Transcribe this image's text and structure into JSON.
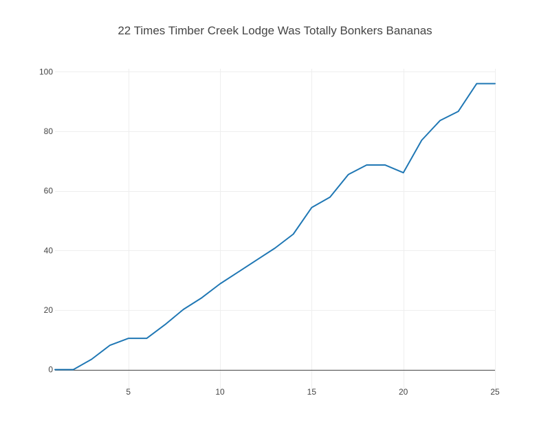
{
  "chart_data": {
    "type": "line",
    "title": "22 Times  Timber Creek Lodge  Was Totally Bonkers Bananas",
    "xlabel": "",
    "ylabel": "",
    "xlim": [
      1,
      25
    ],
    "ylim": [
      -7,
      101
    ],
    "x_ticks": [
      5,
      10,
      15,
      20,
      25
    ],
    "y_ticks": [
      0,
      20,
      40,
      60,
      80,
      100
    ],
    "grid": true,
    "legend": "none",
    "series": [
      {
        "color": "#1f77b4",
        "x": [
          1,
          2,
          3,
          4,
          5,
          6,
          7,
          8,
          9,
          10,
          11,
          12,
          13,
          14,
          15,
          16,
          17,
          18,
          19,
          20,
          21,
          22,
          23,
          24,
          25
        ],
        "y": [
          0,
          0,
          3.5,
          8.2,
          10.5,
          10.5,
          15.1,
          20.2,
          24.1,
          28.8,
          32.8,
          36.8,
          40.8,
          45.5,
          54.4,
          57.9,
          65.5,
          68.7,
          68.7,
          66.1,
          77.0,
          83.6,
          86.7,
          96.0,
          96.0
        ]
      }
    ]
  }
}
